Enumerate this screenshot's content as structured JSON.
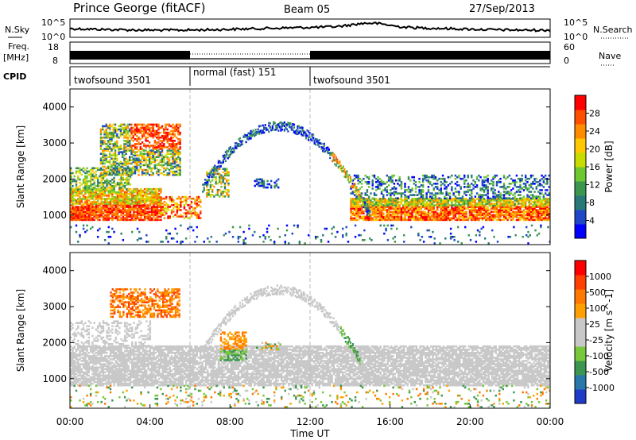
{
  "header": {
    "title": "Prince George (fitACF)",
    "beam": "Beam 05",
    "date": "27/Sep/2013"
  },
  "noise_panel": {
    "left_label": "N.Sky",
    "right_label": "N.Search",
    "left_ticks": [
      "10^5",
      "10^0"
    ],
    "right_ticks": [
      "10^5",
      "10^0"
    ]
  },
  "freq_panel": {
    "left_label_1": "Freq.",
    "left_label_2": "[MHz]",
    "right_label": "Nave",
    "left_ticks": [
      "18",
      "8"
    ],
    "right_ticks": [
      "60",
      "0"
    ]
  },
  "cpid": {
    "label": "CPID",
    "segments": [
      {
        "name": "twofsound 3501",
        "start": 0,
        "end": 6
      },
      {
        "name": "normal (fast) 151",
        "start": 6,
        "end": 12
      },
      {
        "name": "twofsound 3501",
        "start": 12,
        "end": 24
      }
    ]
  },
  "power_colorbar": {
    "label": "Power [dB]",
    "ticks": [
      "28",
      "24",
      "20",
      "16",
      "12",
      "8",
      "4"
    ],
    "colors": [
      "#0000ff",
      "#1e48c8",
      "#2a7878",
      "#3c9650",
      "#6ec832",
      "#c8dc00",
      "#ffc800",
      "#ff8c00",
      "#ff5000",
      "#ff0000"
    ]
  },
  "velocity_colorbar": {
    "label": "Velocity [m s^-1]",
    "ticks": [
      "1000",
      "500",
      "100",
      "25",
      "-25",
      "-100",
      "-500",
      "-1000"
    ],
    "colors": [
      "#1e3cc8",
      "#2878aa",
      "#3c9650",
      "#78c83c",
      "#c8c8c8",
      "#c8c8c8",
      "#ffa000",
      "#ff7800",
      "#ff4000",
      "#ff0000"
    ]
  },
  "chart_data": [
    {
      "type": "heatmap",
      "panel": "power",
      "ylabel": "Slant Range [km]",
      "yticks": [
        "4000",
        "3000",
        "2000",
        "1000"
      ],
      "ylim": [
        180,
        4500
      ],
      "xlim": [
        0,
        24
      ],
      "features": [
        {
          "name": "e-region band",
          "x_range": [
            0,
            24
          ],
          "y_range": [
            900,
            1700
          ],
          "dominant": "red"
        },
        {
          "name": "upper scatter",
          "x_range": [
            1.5,
            5.5
          ],
          "y_range": [
            2000,
            3500
          ],
          "dominant": "red-orange"
        },
        {
          "name": "arc",
          "x_range": [
            6.5,
            15
          ],
          "y_range": [
            1200,
            3500
          ],
          "dominant": "blue-green"
        }
      ]
    },
    {
      "type": "heatmap",
      "panel": "velocity",
      "xlabel": "Time UT",
      "ylabel": "Slant Range [km]",
      "xticks": [
        "00:00",
        "04:00",
        "08:00",
        "12:00",
        "16:00",
        "20:00",
        "00:00"
      ],
      "yticks": [
        "4000",
        "3000",
        "2000",
        "1000"
      ],
      "ylim": [
        180,
        4500
      ],
      "xlim": [
        0,
        24
      ],
      "features": [
        {
          "name": "ground scatter band",
          "x_range": [
            0,
            24
          ],
          "y_range": [
            800,
            1900
          ],
          "dominant": "grey"
        },
        {
          "name": "upper echoes",
          "x_range": [
            2,
            5.5
          ],
          "y_range": [
            2800,
            3500
          ],
          "dominant": "orange"
        },
        {
          "name": "patches",
          "x_range": [
            7.5,
            8.8
          ],
          "y_range": [
            1500,
            2200
          ],
          "dominant": "orange-green"
        }
      ]
    }
  ]
}
